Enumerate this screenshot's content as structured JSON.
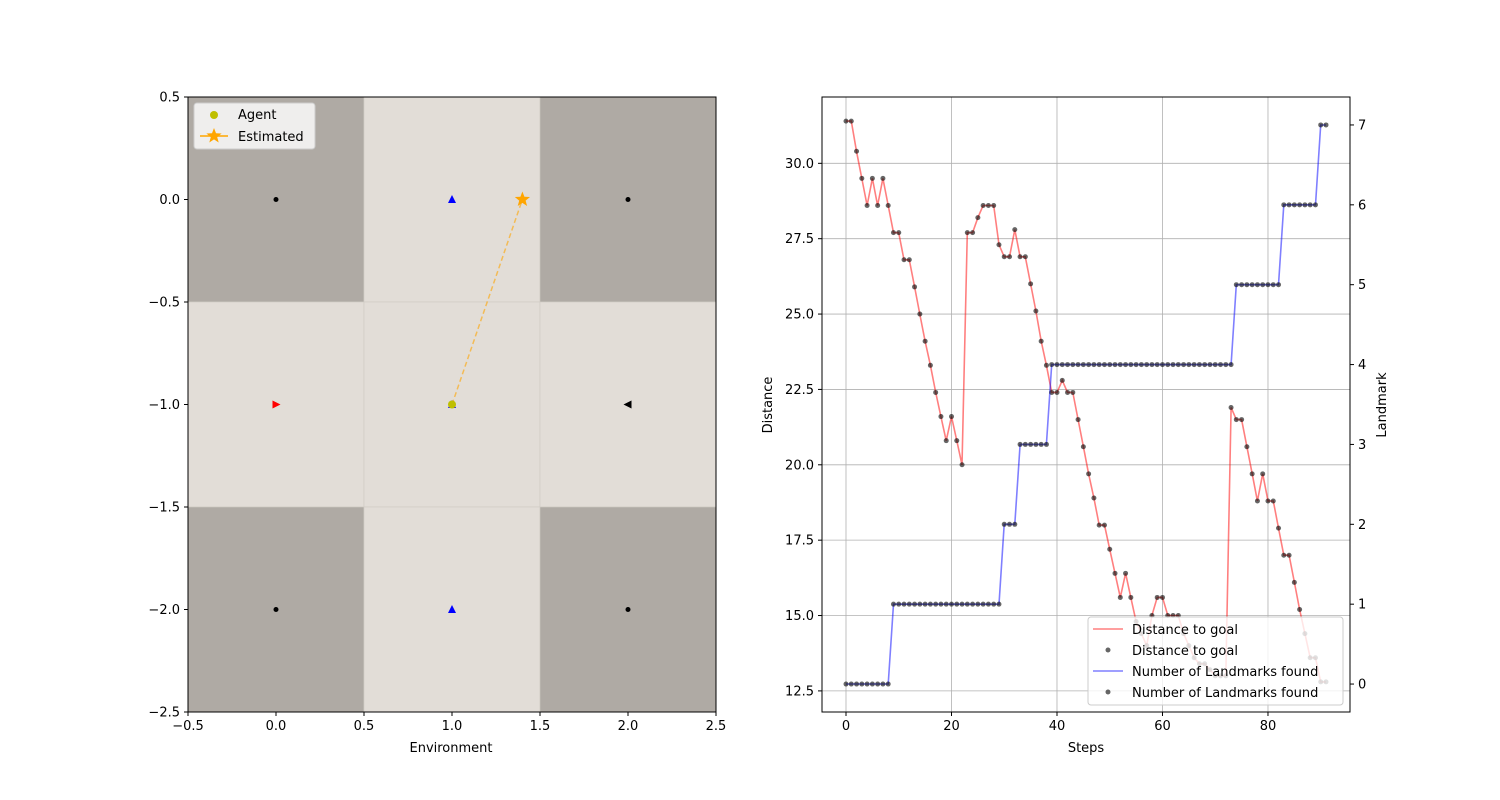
{
  "chart_data": [
    {
      "type": "scatter",
      "xlabel": "Environment",
      "ylabel": "",
      "xlim": [
        -0.5,
        2.5
      ],
      "ylim": [
        -2.5,
        0.5
      ],
      "xticks": [
        "−0.5",
        "0.0",
        "0.5",
        "1.0",
        "1.5",
        "2.0",
        "2.5"
      ],
      "yticks": [
        "0.5",
        "0.0",
        "−0.5",
        "−1.0",
        "−1.5",
        "−2.0",
        "−2.5"
      ],
      "grid": false,
      "cells": [
        {
          "x": [
            -0.5,
            0.5
          ],
          "y": [
            0.5,
            -0.5
          ],
          "shade": "dark"
        },
        {
          "x": [
            0.5,
            1.5
          ],
          "y": [
            0.5,
            -0.5
          ],
          "shade": "light"
        },
        {
          "x": [
            1.5,
            2.5
          ],
          "y": [
            0.5,
            -0.5
          ],
          "shade": "dark"
        },
        {
          "x": [
            -0.5,
            0.5
          ],
          "y": [
            -0.5,
            -1.5
          ],
          "shade": "light"
        },
        {
          "x": [
            0.5,
            1.5
          ],
          "y": [
            -0.5,
            -1.5
          ],
          "shade": "light"
        },
        {
          "x": [
            1.5,
            2.5
          ],
          "y": [
            -0.5,
            -1.5
          ],
          "shade": "light"
        },
        {
          "x": [
            -0.5,
            0.5
          ],
          "y": [
            -1.5,
            -2.5
          ],
          "shade": "dark"
        },
        {
          "x": [
            0.5,
            1.5
          ],
          "y": [
            -1.5,
            -2.5
          ],
          "shade": "light"
        },
        {
          "x": [
            1.5,
            2.5
          ],
          "y": [
            -1.5,
            -2.5
          ],
          "shade": "dark"
        }
      ],
      "landmarks": [
        {
          "x": 0,
          "y": 0,
          "marker": "dot",
          "color": "#000000"
        },
        {
          "x": 1,
          "y": 0,
          "marker": "triangle-up",
          "color": "#0000ff"
        },
        {
          "x": 2,
          "y": 0,
          "marker": "dot",
          "color": "#000000"
        },
        {
          "x": 0,
          "y": -1,
          "marker": "triangle-right",
          "color": "#ff0000"
        },
        {
          "x": 1,
          "y": -1,
          "marker": "triangle-up",
          "color": "#0000ff"
        },
        {
          "x": 2,
          "y": -1,
          "marker": "triangle-left",
          "color": "#000000"
        },
        {
          "x": 0,
          "y": -2,
          "marker": "dot",
          "color": "#000000"
        },
        {
          "x": 1,
          "y": -2,
          "marker": "triangle-up",
          "color": "#0000ff"
        },
        {
          "x": 2,
          "y": -2,
          "marker": "dot",
          "color": "#000000"
        }
      ],
      "agent": {
        "name": "Agent",
        "x": 1.0,
        "y": -1.0,
        "color": "#bfbf00"
      },
      "estimated": {
        "name": "Estimated",
        "x": 1.4,
        "y": 0.0,
        "color": "#ffa500"
      },
      "legend": {
        "placement": "upper-left",
        "entries": [
          "Agent",
          "Estimated"
        ]
      },
      "colors": {
        "dark": "#afaaa4",
        "light": "#e2ddd7"
      }
    },
    {
      "type": "line",
      "xlabel": "Steps",
      "ylabel": "Distance",
      "y2label": "Landmark",
      "xlim": [
        -4.55,
        95.55
      ],
      "ylim": [
        11.8,
        32.2
      ],
      "y2lim": [
        -0.35,
        7.35
      ],
      "xticks": [
        "0",
        "20",
        "40",
        "60",
        "80"
      ],
      "yticks": [
        "12.5",
        "15.0",
        "17.5",
        "20.0",
        "22.5",
        "25.0",
        "27.5",
        "30.0"
      ],
      "y2ticks": [
        "0",
        "1",
        "2",
        "3",
        "4",
        "5",
        "6",
        "7"
      ],
      "grid": true,
      "legend": {
        "placement": "lower-right",
        "entries": [
          "Distance to goal",
          "Distance to goal",
          "Number of Landmarks found",
          "Number of Landmarks found"
        ]
      },
      "series": [
        {
          "name": "Distance to goal",
          "axis": "left",
          "color": "#ff0000",
          "x": [
            0,
            1,
            2,
            3,
            4,
            5,
            6,
            7,
            8,
            9,
            10,
            11,
            12,
            13,
            14,
            15,
            16,
            17,
            18,
            19,
            20,
            21,
            22,
            23,
            24,
            25,
            26,
            27,
            28,
            29,
            30,
            31,
            32,
            33,
            34,
            35,
            36,
            37,
            38,
            39,
            40,
            41,
            42,
            43,
            44,
            45,
            46,
            47,
            48,
            49,
            50,
            51,
            52,
            53,
            54,
            55,
            56,
            57,
            58,
            59,
            60,
            61,
            62,
            63,
            64,
            65,
            66,
            67,
            68,
            69,
            70,
            71,
            72,
            73,
            74,
            75,
            76,
            77,
            78,
            79,
            80,
            81,
            82,
            83,
            84,
            85,
            86,
            87,
            88,
            89,
            90,
            91
          ],
          "values": [
            31.4,
            31.4,
            30.4,
            29.5,
            28.6,
            29.5,
            28.6,
            29.5,
            28.6,
            27.7,
            27.7,
            26.8,
            26.8,
            25.9,
            25.0,
            24.1,
            23.3,
            22.4,
            21.6,
            20.8,
            21.6,
            20.8,
            20.0,
            27.7,
            27.7,
            28.2,
            28.6,
            28.6,
            28.6,
            27.3,
            26.9,
            26.9,
            27.8,
            26.9,
            26.9,
            26.0,
            25.1,
            24.1,
            23.3,
            22.4,
            22.4,
            22.8,
            22.4,
            22.4,
            21.5,
            20.6,
            19.7,
            18.9,
            18.0,
            18.0,
            17.2,
            16.4,
            15.6,
            16.4,
            15.6,
            14.8,
            14.4,
            14.0,
            15.0,
            15.6,
            15.6,
            15.0,
            15.0,
            15.0,
            14.4,
            14.0,
            13.6,
            13.4,
            13.4,
            13.2,
            13.0,
            13.0,
            13.0,
            21.9,
            21.5,
            21.5,
            20.6,
            19.7,
            18.8,
            19.7,
            18.8,
            18.8,
            17.9,
            17.0,
            17.0,
            16.1,
            15.2,
            14.4,
            13.6,
            13.6,
            12.8,
            12.8
          ]
        },
        {
          "name": "Number of Landmarks found",
          "axis": "right",
          "color": "#0000ff",
          "x": [
            0,
            1,
            2,
            3,
            4,
            5,
            6,
            7,
            8,
            9,
            10,
            11,
            12,
            13,
            14,
            15,
            16,
            17,
            18,
            19,
            20,
            21,
            22,
            23,
            24,
            25,
            26,
            27,
            28,
            29,
            30,
            31,
            32,
            33,
            34,
            35,
            36,
            37,
            38,
            39,
            40,
            41,
            42,
            43,
            44,
            45,
            46,
            47,
            48,
            49,
            50,
            51,
            52,
            53,
            54,
            55,
            56,
            57,
            58,
            59,
            60,
            61,
            62,
            63,
            64,
            65,
            66,
            67,
            68,
            69,
            70,
            71,
            72,
            73,
            74,
            75,
            76,
            77,
            78,
            79,
            80,
            81,
            82,
            83,
            84,
            85,
            86,
            87,
            88,
            89,
            90,
            91
          ],
          "values": [
            0,
            0,
            0,
            0,
            0,
            0,
            0,
            0,
            0,
            1,
            1,
            1,
            1,
            1,
            1,
            1,
            1,
            1,
            1,
            1,
            1,
            1,
            1,
            1,
            1,
            1,
            1,
            1,
            1,
            1,
            2,
            2,
            2,
            3,
            3,
            3,
            3,
            3,
            3,
            4,
            4,
            4,
            4,
            4,
            4,
            4,
            4,
            4,
            4,
            4,
            4,
            4,
            4,
            4,
            4,
            4,
            4,
            4,
            4,
            4,
            4,
            4,
            4,
            4,
            4,
            4,
            4,
            4,
            4,
            4,
            4,
            4,
            4,
            4,
            5,
            5,
            5,
            5,
            5,
            5,
            5,
            5,
            5,
            6,
            6,
            6,
            6,
            6,
            6,
            6,
            7,
            7
          ]
        }
      ]
    }
  ]
}
